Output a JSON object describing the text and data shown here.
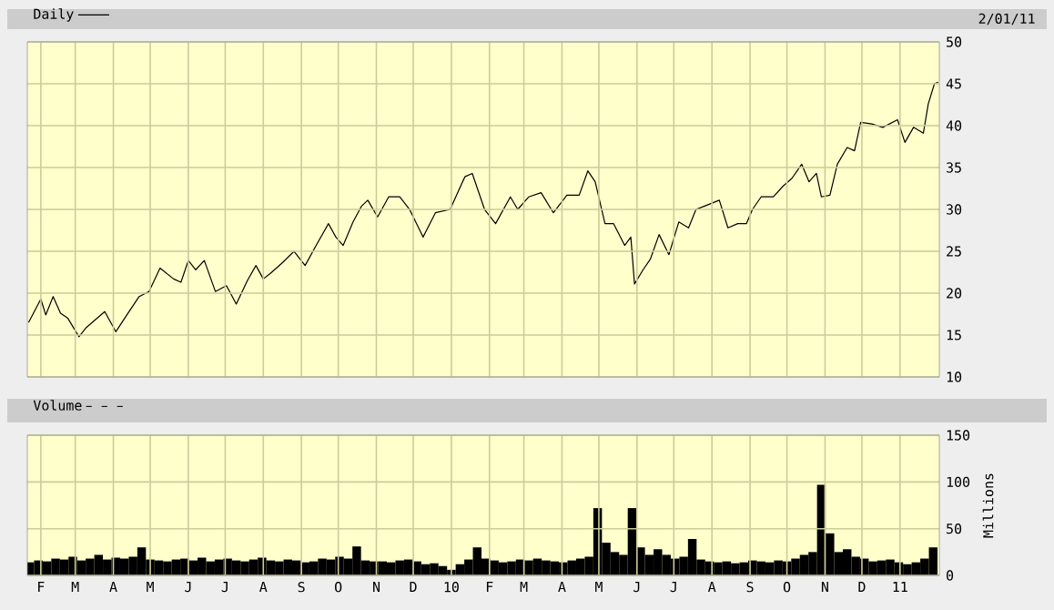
{
  "chart_data": [
    {
      "type": "line",
      "legend": "top left",
      "grid": true,
      "tick_labels": "y",
      "annotations": [
        "2/01/11"
      ],
      "xlim": [
        "2009-01-21",
        "2011-02-02"
      ],
      "ylim": [
        10,
        50
      ],
      "yticks": [
        10,
        15,
        20,
        25,
        30,
        35,
        40,
        45,
        50
      ],
      "xticks": [
        {
          "value": "2009-02-01",
          "label": null
        },
        {
          "value": "2009-03-01",
          "label": null
        },
        {
          "value": "2009-04-01",
          "label": null
        },
        {
          "value": "2009-05-01",
          "label": null
        },
        {
          "value": "2009-06-01",
          "label": null
        },
        {
          "value": "2009-07-01",
          "label": null
        },
        {
          "value": "2009-08-01",
          "label": null
        },
        {
          "value": "2009-09-01",
          "label": null
        },
        {
          "value": "2009-10-01",
          "label": null
        },
        {
          "value": "2009-11-01",
          "label": null
        },
        {
          "value": "2009-12-01",
          "label": null
        },
        {
          "value": "2010-01-01",
          "label": null
        },
        {
          "value": "2010-02-01",
          "label": null
        },
        {
          "value": "2010-03-01",
          "label": null
        },
        {
          "value": "2010-04-01",
          "label": null
        },
        {
          "value": "2010-05-01",
          "label": null
        },
        {
          "value": "2010-06-01",
          "label": null
        },
        {
          "value": "2010-07-01",
          "label": null
        },
        {
          "value": "2010-08-01",
          "label": null
        },
        {
          "value": "2010-09-01",
          "label": null
        },
        {
          "value": "2010-10-01",
          "label": null
        },
        {
          "value": "2010-11-01",
          "label": null
        },
        {
          "value": "2010-12-01",
          "label": null
        },
        {
          "value": "2011-01-01",
          "label": null
        }
      ],
      "series": [
        {
          "name": "Daily",
          "color": "#000000",
          "x": [
            "2009-01-22",
            "2009-02-01",
            "2009-02-05",
            "2009-02-11",
            "2009-02-17",
            "2009-02-23",
            "2009-03-04",
            "2009-03-10",
            "2009-03-25",
            "2009-04-03",
            "2009-04-12",
            "2009-04-22",
            "2009-04-30",
            "2009-05-09",
            "2009-05-20",
            "2009-05-26",
            "2009-06-01",
            "2009-06-07",
            "2009-06-14",
            "2009-06-23",
            "2009-07-02",
            "2009-07-10",
            "2009-07-19",
            "2009-07-26",
            "2009-08-01",
            "2009-08-07",
            "2009-08-17",
            "2009-08-26",
            "2009-09-04",
            "2009-09-13",
            "2009-09-23",
            "2009-09-29",
            "2009-10-05",
            "2009-10-13",
            "2009-10-20",
            "2009-10-25",
            "2009-11-02",
            "2009-11-11",
            "2009-11-20",
            "2009-11-28",
            "2009-12-09",
            "2009-12-19",
            "2009-12-31",
            "2010-01-12",
            "2010-01-18",
            "2010-01-28",
            "2010-02-06",
            "2010-02-18",
            "2010-02-24",
            "2010-03-05",
            "2010-03-15",
            "2010-03-25",
            "2010-04-05",
            "2010-04-15",
            "2010-04-22",
            "2010-04-28",
            "2010-05-06",
            "2010-05-13",
            "2010-05-22",
            "2010-05-27",
            "2010-05-30",
            "2010-06-06",
            "2010-06-12",
            "2010-06-19",
            "2010-06-27",
            "2010-07-05",
            "2010-07-13",
            "2010-07-19",
            "2010-07-26",
            "2010-08-07",
            "2010-08-14",
            "2010-08-22",
            "2010-08-29",
            "2010-09-03",
            "2010-09-10",
            "2010-09-20",
            "2010-09-28",
            "2010-10-05",
            "2010-10-13",
            "2010-10-19",
            "2010-10-25",
            "2010-10-29",
            "2010-11-05",
            "2010-11-11",
            "2010-11-19",
            "2010-11-25",
            "2010-11-30",
            "2010-12-09",
            "2010-12-18",
            "2010-12-30",
            "2011-01-05",
            "2011-01-12",
            "2011-01-20",
            "2011-01-24",
            "2011-01-29",
            "2011-02-01"
          ],
          "values": [
            16.5,
            19.3,
            17.4,
            19.6,
            17.6,
            17,
            14.8,
            15.9,
            17.8,
            15.4,
            17.4,
            19.6,
            20.2,
            23,
            21.7,
            21.3,
            23.9,
            22.8,
            23.9,
            20.2,
            20.9,
            18.7,
            21.5,
            23.3,
            21.7,
            22.4,
            23.7,
            25,
            23.3,
            25.7,
            28.3,
            26.7,
            25.7,
            28.5,
            30.4,
            31.1,
            29.1,
            31.5,
            31.5,
            30,
            26.7,
            29.6,
            30,
            33.9,
            34.3,
            30,
            28.3,
            31.5,
            30,
            31.5,
            32,
            29.6,
            31.7,
            31.7,
            34.6,
            33.3,
            28.3,
            28.3,
            25.7,
            26.7,
            21.1,
            22.8,
            24.1,
            27,
            24.6,
            28.5,
            27.8,
            30,
            30.4,
            31.1,
            27.8,
            28.3,
            28.3,
            30,
            31.5,
            31.5,
            32.8,
            33.7,
            35.4,
            33.3,
            34.3,
            31.5,
            31.7,
            35.4,
            37.4,
            37,
            40.4,
            40.2,
            39.8,
            40.7,
            38,
            39.8,
            39.1,
            42.6,
            45,
            45.2
          ]
        }
      ]
    },
    {
      "type": "bar",
      "legend": "top left",
      "grid": true,
      "ylabel": "Millions",
      "xlim": [
        "2009-01-21",
        "2011-02-02"
      ],
      "ylim": [
        0,
        150
      ],
      "yticks": [
        0,
        50,
        100,
        150
      ],
      "xticks": [
        {
          "value": "2009-02-01",
          "label": "F"
        },
        {
          "value": "2009-03-01",
          "label": "M"
        },
        {
          "value": "2009-04-01",
          "label": "A"
        },
        {
          "value": "2009-05-01",
          "label": "M"
        },
        {
          "value": "2009-06-01",
          "label": "J"
        },
        {
          "value": "2009-07-01",
          "label": "J"
        },
        {
          "value": "2009-08-01",
          "label": "A"
        },
        {
          "value": "2009-09-01",
          "label": "S"
        },
        {
          "value": "2009-10-01",
          "label": "O"
        },
        {
          "value": "2009-11-01",
          "label": "N"
        },
        {
          "value": "2009-12-01",
          "label": "D"
        },
        {
          "value": "2010-01-01",
          "label": "10"
        },
        {
          "value": "2010-02-01",
          "label": "F"
        },
        {
          "value": "2010-03-01",
          "label": "M"
        },
        {
          "value": "2010-04-01",
          "label": "A"
        },
        {
          "value": "2010-05-01",
          "label": "M"
        },
        {
          "value": "2010-06-01",
          "label": "J"
        },
        {
          "value": "2010-07-01",
          "label": "J"
        },
        {
          "value": "2010-08-01",
          "label": "A"
        },
        {
          "value": "2010-09-01",
          "label": "S"
        },
        {
          "value": "2010-10-01",
          "label": "O"
        },
        {
          "value": "2010-11-01",
          "label": "N"
        },
        {
          "value": "2010-12-01",
          "label": "D"
        },
        {
          "value": "2011-01-01",
          "label": "11"
        }
      ],
      "series": [
        {
          "name": "Volume",
          "color": "#000000",
          "x": [
            "2009-01-23",
            "2009-01-30",
            "2009-02-06",
            "2009-02-13",
            "2009-02-20",
            "2009-02-27",
            "2009-03-06",
            "2009-03-13",
            "2009-03-20",
            "2009-03-27",
            "2009-04-03",
            "2009-04-10",
            "2009-04-17",
            "2009-04-24",
            "2009-05-01",
            "2009-05-08",
            "2009-05-15",
            "2009-05-22",
            "2009-05-29",
            "2009-06-05",
            "2009-06-12",
            "2009-06-19",
            "2009-06-26",
            "2009-07-03",
            "2009-07-10",
            "2009-07-17",
            "2009-07-24",
            "2009-07-31",
            "2009-08-07",
            "2009-08-14",
            "2009-08-21",
            "2009-08-28",
            "2009-09-04",
            "2009-09-11",
            "2009-09-18",
            "2009-09-25",
            "2009-10-02",
            "2009-10-09",
            "2009-10-16",
            "2009-10-23",
            "2009-10-30",
            "2009-11-06",
            "2009-11-13",
            "2009-11-20",
            "2009-11-27",
            "2009-12-04",
            "2009-12-11",
            "2009-12-18",
            "2009-12-25",
            "2010-01-01",
            "2010-01-08",
            "2010-01-15",
            "2010-01-22",
            "2010-01-29",
            "2010-02-05",
            "2010-02-12",
            "2010-02-19",
            "2010-02-26",
            "2010-03-05",
            "2010-03-12",
            "2010-03-19",
            "2010-03-26",
            "2010-04-02",
            "2010-04-09",
            "2010-04-16",
            "2010-04-23",
            "2010-04-30",
            "2010-05-07",
            "2010-05-14",
            "2010-05-21",
            "2010-05-28",
            "2010-06-04",
            "2010-06-11",
            "2010-06-18",
            "2010-06-25",
            "2010-07-02",
            "2010-07-09",
            "2010-07-16",
            "2010-07-23",
            "2010-07-30",
            "2010-08-06",
            "2010-08-13",
            "2010-08-20",
            "2010-08-27",
            "2010-09-03",
            "2010-09-10",
            "2010-09-17",
            "2010-09-24",
            "2010-10-01",
            "2010-10-08",
            "2010-10-15",
            "2010-10-22",
            "2010-10-29",
            "2010-11-05",
            "2010-11-12",
            "2010-11-19",
            "2010-11-26",
            "2010-12-03",
            "2010-12-10",
            "2010-12-17",
            "2010-12-24",
            "2010-12-31",
            "2011-01-07",
            "2011-01-14",
            "2011-01-21",
            "2011-01-28"
          ],
          "values": [
            14,
            16,
            15,
            18,
            17,
            20,
            16,
            18,
            22,
            17,
            19,
            18,
            20,
            30,
            17,
            16,
            15,
            17,
            18,
            16,
            19,
            15,
            17,
            18,
            16,
            15,
            17,
            19,
            16,
            15,
            17,
            16,
            14,
            15,
            18,
            17,
            20,
            18,
            31,
            16,
            15,
            15,
            14,
            16,
            17,
            15,
            12,
            13,
            10,
            6,
            12,
            17,
            30,
            18,
            16,
            14,
            15,
            17,
            16,
            18,
            16,
            15,
            14,
            16,
            18,
            20,
            72,
            35,
            25,
            22,
            72,
            30,
            22,
            28,
            22,
            18,
            20,
            39,
            17,
            15,
            14,
            15,
            13,
            14,
            16,
            15,
            14,
            16,
            15,
            18,
            22,
            25,
            97,
            45,
            25,
            28,
            20,
            18,
            15,
            16,
            17,
            14,
            12,
            14,
            18,
            30
          ]
        }
      ]
    }
  ]
}
